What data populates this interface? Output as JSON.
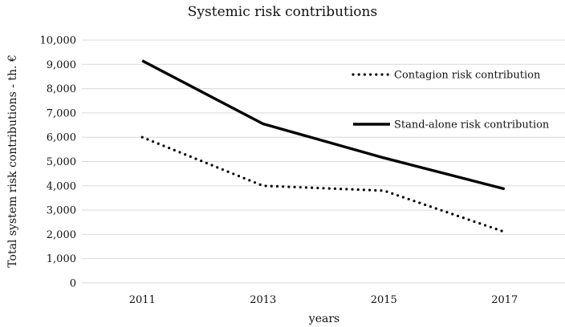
{
  "chart_data": {
    "type": "line",
    "title": "Systemic risk contributions",
    "xlabel": "years",
    "ylabel": "Total system risk contributions - th. €",
    "categories": [
      "2011",
      "2013",
      "2015",
      "2017"
    ],
    "ylim": [
      0,
      10000
    ],
    "ytick_step": 1000,
    "ytick_labels": [
      "0",
      "1,000",
      "2,000",
      "3,000",
      "4,000",
      "5,000",
      "6,000",
      "7,000",
      "8,000",
      "9,000",
      "10,000"
    ],
    "grid": true,
    "legend_position": "right",
    "series": [
      {
        "name": "Contagion risk contribution",
        "style": "dotted",
        "color": "#000000",
        "values": [
          6000,
          4000,
          3800,
          2100
        ]
      },
      {
        "name": "Stand-alone risk contribution",
        "style": "solid",
        "color": "#000000",
        "values": [
          9150,
          6550,
          5150,
          3870
        ]
      }
    ]
  }
}
